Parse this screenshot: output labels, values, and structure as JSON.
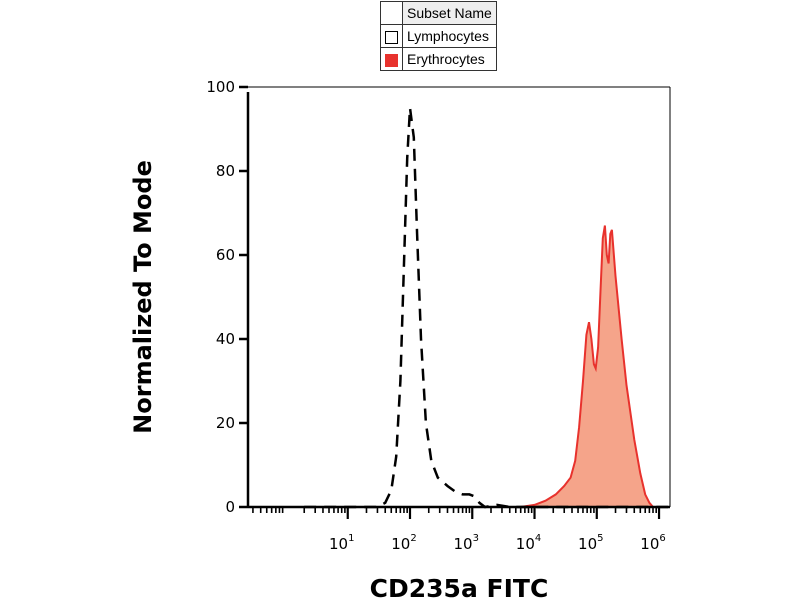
{
  "legend": {
    "header": "Subset Name",
    "items": [
      {
        "label": "Lymphocytes",
        "swatch": "open"
      },
      {
        "label": "Erythrocytes",
        "swatch": "filled",
        "color": "#e8322d"
      }
    ]
  },
  "chart_data": {
    "type": "histogram",
    "title": "",
    "xlabel": "CD235a FITC",
    "ylabel": "Normalized To Mode",
    "xscale": "log",
    "xlim": [
      0.25,
      1500000
    ],
    "ylim": [
      0,
      100
    ],
    "yticks": [
      0,
      20,
      40,
      60,
      80,
      100
    ],
    "xticks": [
      {
        "base": "10",
        "exp": "1"
      },
      {
        "base": "10",
        "exp": "2"
      },
      {
        "base": "10",
        "exp": "3"
      },
      {
        "base": "10",
        "exp": "4"
      },
      {
        "base": "10",
        "exp": "5"
      },
      {
        "base": "10",
        "exp": "6"
      }
    ],
    "grid": false,
    "series": [
      {
        "name": "Lymphocytes",
        "style": "dashed-line",
        "color": "#000000",
        "points": [
          [
            2,
            0
          ],
          [
            30,
            0
          ],
          [
            40,
            1
          ],
          [
            50,
            4
          ],
          [
            60,
            12
          ],
          [
            70,
            30
          ],
          [
            80,
            58
          ],
          [
            90,
            83
          ],
          [
            100,
            95
          ],
          [
            115,
            88
          ],
          [
            130,
            65
          ],
          [
            150,
            40
          ],
          [
            180,
            20
          ],
          [
            220,
            11
          ],
          [
            280,
            7
          ],
          [
            400,
            5
          ],
          [
            550,
            3.5
          ],
          [
            700,
            3
          ],
          [
            900,
            3
          ],
          [
            1100,
            2.5
          ],
          [
            1300,
            1
          ],
          [
            1600,
            0
          ],
          [
            2500,
            0.5
          ],
          [
            4000,
            0
          ],
          [
            1400000,
            0
          ]
        ]
      },
      {
        "name": "Erythrocytes",
        "style": "filled",
        "color": "#e8322d",
        "fill": "#f5a48a",
        "points": [
          [
            2,
            0
          ],
          [
            6000,
            0
          ],
          [
            10000,
            0.5
          ],
          [
            15000,
            1.5
          ],
          [
            22000,
            3
          ],
          [
            30000,
            5
          ],
          [
            38000,
            7
          ],
          [
            45000,
            11
          ],
          [
            52000,
            19
          ],
          [
            60000,
            30
          ],
          [
            68000,
            41
          ],
          [
            75000,
            44
          ],
          [
            82000,
            40
          ],
          [
            90000,
            34
          ],
          [
            96000,
            33
          ],
          [
            105000,
            38
          ],
          [
            115000,
            52
          ],
          [
            125000,
            64
          ],
          [
            135000,
            67
          ],
          [
            145000,
            60
          ],
          [
            155000,
            58
          ],
          [
            165000,
            65
          ],
          [
            175000,
            66
          ],
          [
            200000,
            55
          ],
          [
            250000,
            40
          ],
          [
            300000,
            29
          ],
          [
            350000,
            22
          ],
          [
            400000,
            16
          ],
          [
            500000,
            8
          ],
          [
            600000,
            3
          ],
          [
            700000,
            1
          ],
          [
            800000,
            0
          ],
          [
            1400000,
            0
          ]
        ]
      }
    ]
  }
}
